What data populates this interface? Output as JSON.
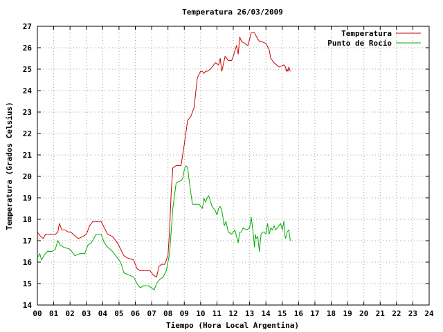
{
  "chart_data": {
    "type": "line",
    "title": "Temperatura 26/03/2009",
    "xlabel": "Tiempo (Hora Local Argentina)",
    "ylabel": "Temperatura (Grados Celsius)",
    "xlim": [
      0,
      24
    ],
    "ylim": [
      14,
      27
    ],
    "x_ticks": [
      0,
      1,
      2,
      3,
      4,
      5,
      6,
      7,
      8,
      9,
      10,
      11,
      12,
      13,
      14,
      15,
      16,
      17,
      18,
      19,
      20,
      21,
      22,
      23,
      24
    ],
    "x_tick_labels": [
      "00",
      "01",
      "02",
      "03",
      "04",
      "05",
      "06",
      "07",
      "08",
      "09",
      "10",
      "11",
      "12",
      "13",
      "14",
      "15",
      "16",
      "17",
      "18",
      "19",
      "20",
      "21",
      "22",
      "23",
      "24"
    ],
    "y_ticks": [
      14,
      15,
      16,
      17,
      18,
      19,
      20,
      21,
      22,
      23,
      24,
      25,
      26,
      27
    ],
    "y_tick_labels": [
      "14",
      "15",
      "16",
      "17",
      "18",
      "19",
      "20",
      "21",
      "22",
      "23",
      "24",
      "25",
      "26",
      "27"
    ],
    "grid": true,
    "legend_position": "top-right",
    "series": [
      {
        "name": "Temperatura",
        "color": "#cc0000",
        "x": [
          0.0,
          0.2,
          0.35,
          0.5,
          0.8,
          1.1,
          1.25,
          1.35,
          1.5,
          1.7,
          1.9,
          2.05,
          2.2,
          2.5,
          2.8,
          3.0,
          3.2,
          3.4,
          3.6,
          3.9,
          4.1,
          4.3,
          4.6,
          4.9,
          5.1,
          5.3,
          5.5,
          5.9,
          6.1,
          6.3,
          6.6,
          6.9,
          7.1,
          7.3,
          7.45,
          7.6,
          7.8,
          8.0,
          8.1,
          8.2,
          8.3,
          8.5,
          8.8,
          9.0,
          9.2,
          9.4,
          9.6,
          9.8,
          10.0,
          10.1,
          10.2,
          10.3,
          10.4,
          10.6,
          10.9,
          11.1,
          11.2,
          11.3,
          11.5,
          11.7,
          11.9,
          12.0,
          12.2,
          12.3,
          12.4,
          12.5,
          12.7,
          12.9,
          13.1,
          13.3,
          13.5,
          13.6,
          13.7,
          14.0,
          14.2,
          14.3,
          14.5,
          14.8,
          15.1,
          15.2,
          15.25,
          15.3,
          15.35,
          15.4,
          15.5
        ],
        "values": [
          17.4,
          17.2,
          17.1,
          17.3,
          17.3,
          17.3,
          17.4,
          17.8,
          17.5,
          17.5,
          17.4,
          17.4,
          17.3,
          17.1,
          17.2,
          17.3,
          17.7,
          17.9,
          17.9,
          17.9,
          17.6,
          17.3,
          17.2,
          16.9,
          16.6,
          16.3,
          16.2,
          16.1,
          15.7,
          15.6,
          15.6,
          15.6,
          15.4,
          15.3,
          15.8,
          15.9,
          15.9,
          16.3,
          17.5,
          19.3,
          20.4,
          20.5,
          20.5,
          21.5,
          22.6,
          22.8,
          23.2,
          24.6,
          24.9,
          24.9,
          24.8,
          24.9,
          24.9,
          25.0,
          25.3,
          25.2,
          25.5,
          24.9,
          25.6,
          25.4,
          25.4,
          25.6,
          26.1,
          25.7,
          26.5,
          26.3,
          26.2,
          26.1,
          26.7,
          26.7,
          26.4,
          26.3,
          26.3,
          26.2,
          25.9,
          25.5,
          25.3,
          25.1,
          25.2,
          25.1,
          24.9,
          25.0,
          24.9,
          25.1,
          24.9
        ]
      },
      {
        "name": "Punto de Rocío",
        "color": "#00aa00",
        "x": [
          0.0,
          0.15,
          0.25,
          0.4,
          0.6,
          0.9,
          1.1,
          1.25,
          1.4,
          1.6,
          2.0,
          2.3,
          2.6,
          2.9,
          3.1,
          3.3,
          3.6,
          3.9,
          4.1,
          4.3,
          4.6,
          4.9,
          5.1,
          5.3,
          5.6,
          5.9,
          6.1,
          6.3,
          6.5,
          6.8,
          7.0,
          7.15,
          7.3,
          7.5,
          7.7,
          7.9,
          8.1,
          8.3,
          8.5,
          8.8,
          8.9,
          9.0,
          9.1,
          9.2,
          9.35,
          9.5,
          9.7,
          9.9,
          10.1,
          10.15,
          10.2,
          10.3,
          10.4,
          10.5,
          10.7,
          10.9,
          11.0,
          11.1,
          11.2,
          11.3,
          11.45,
          11.55,
          11.7,
          11.9,
          12.1,
          12.2,
          12.3,
          12.4,
          12.5,
          12.6,
          12.8,
          13.0,
          13.1,
          13.2,
          13.3,
          13.35,
          13.4,
          13.5,
          13.6,
          13.7,
          13.8,
          13.9,
          14.0,
          14.1,
          14.2,
          14.3,
          14.4,
          14.5,
          14.6,
          14.7,
          14.8,
          14.9,
          15.0,
          15.1,
          15.15,
          15.2,
          15.3,
          15.4,
          15.5
        ],
        "values": [
          16.2,
          16.4,
          16.1,
          16.3,
          16.5,
          16.5,
          16.6,
          17.0,
          16.8,
          16.7,
          16.6,
          16.3,
          16.4,
          16.4,
          16.8,
          16.9,
          17.3,
          17.3,
          16.9,
          16.7,
          16.5,
          16.2,
          16.0,
          15.5,
          15.4,
          15.3,
          15.0,
          14.8,
          14.9,
          14.9,
          14.8,
          14.7,
          15.0,
          15.2,
          15.3,
          15.6,
          16.4,
          18.5,
          19.7,
          19.8,
          19.9,
          20.3,
          20.5,
          20.4,
          19.5,
          18.7,
          18.7,
          18.7,
          18.5,
          18.7,
          19.0,
          18.8,
          19.0,
          19.1,
          18.6,
          18.4,
          18.2,
          18.5,
          18.6,
          18.4,
          17.7,
          17.9,
          17.4,
          17.3,
          17.5,
          17.2,
          16.9,
          17.4,
          17.4,
          17.6,
          17.5,
          17.6,
          18.1,
          17.5,
          16.7,
          17.3,
          17.1,
          17.2,
          16.5,
          17.3,
          17.4,
          17.4,
          17.3,
          17.8,
          17.3,
          17.6,
          17.5,
          17.7,
          17.5,
          17.6,
          17.7,
          17.8,
          17.5,
          17.9,
          17.3,
          17.1,
          17.4,
          17.5,
          17.0
        ]
      }
    ]
  }
}
